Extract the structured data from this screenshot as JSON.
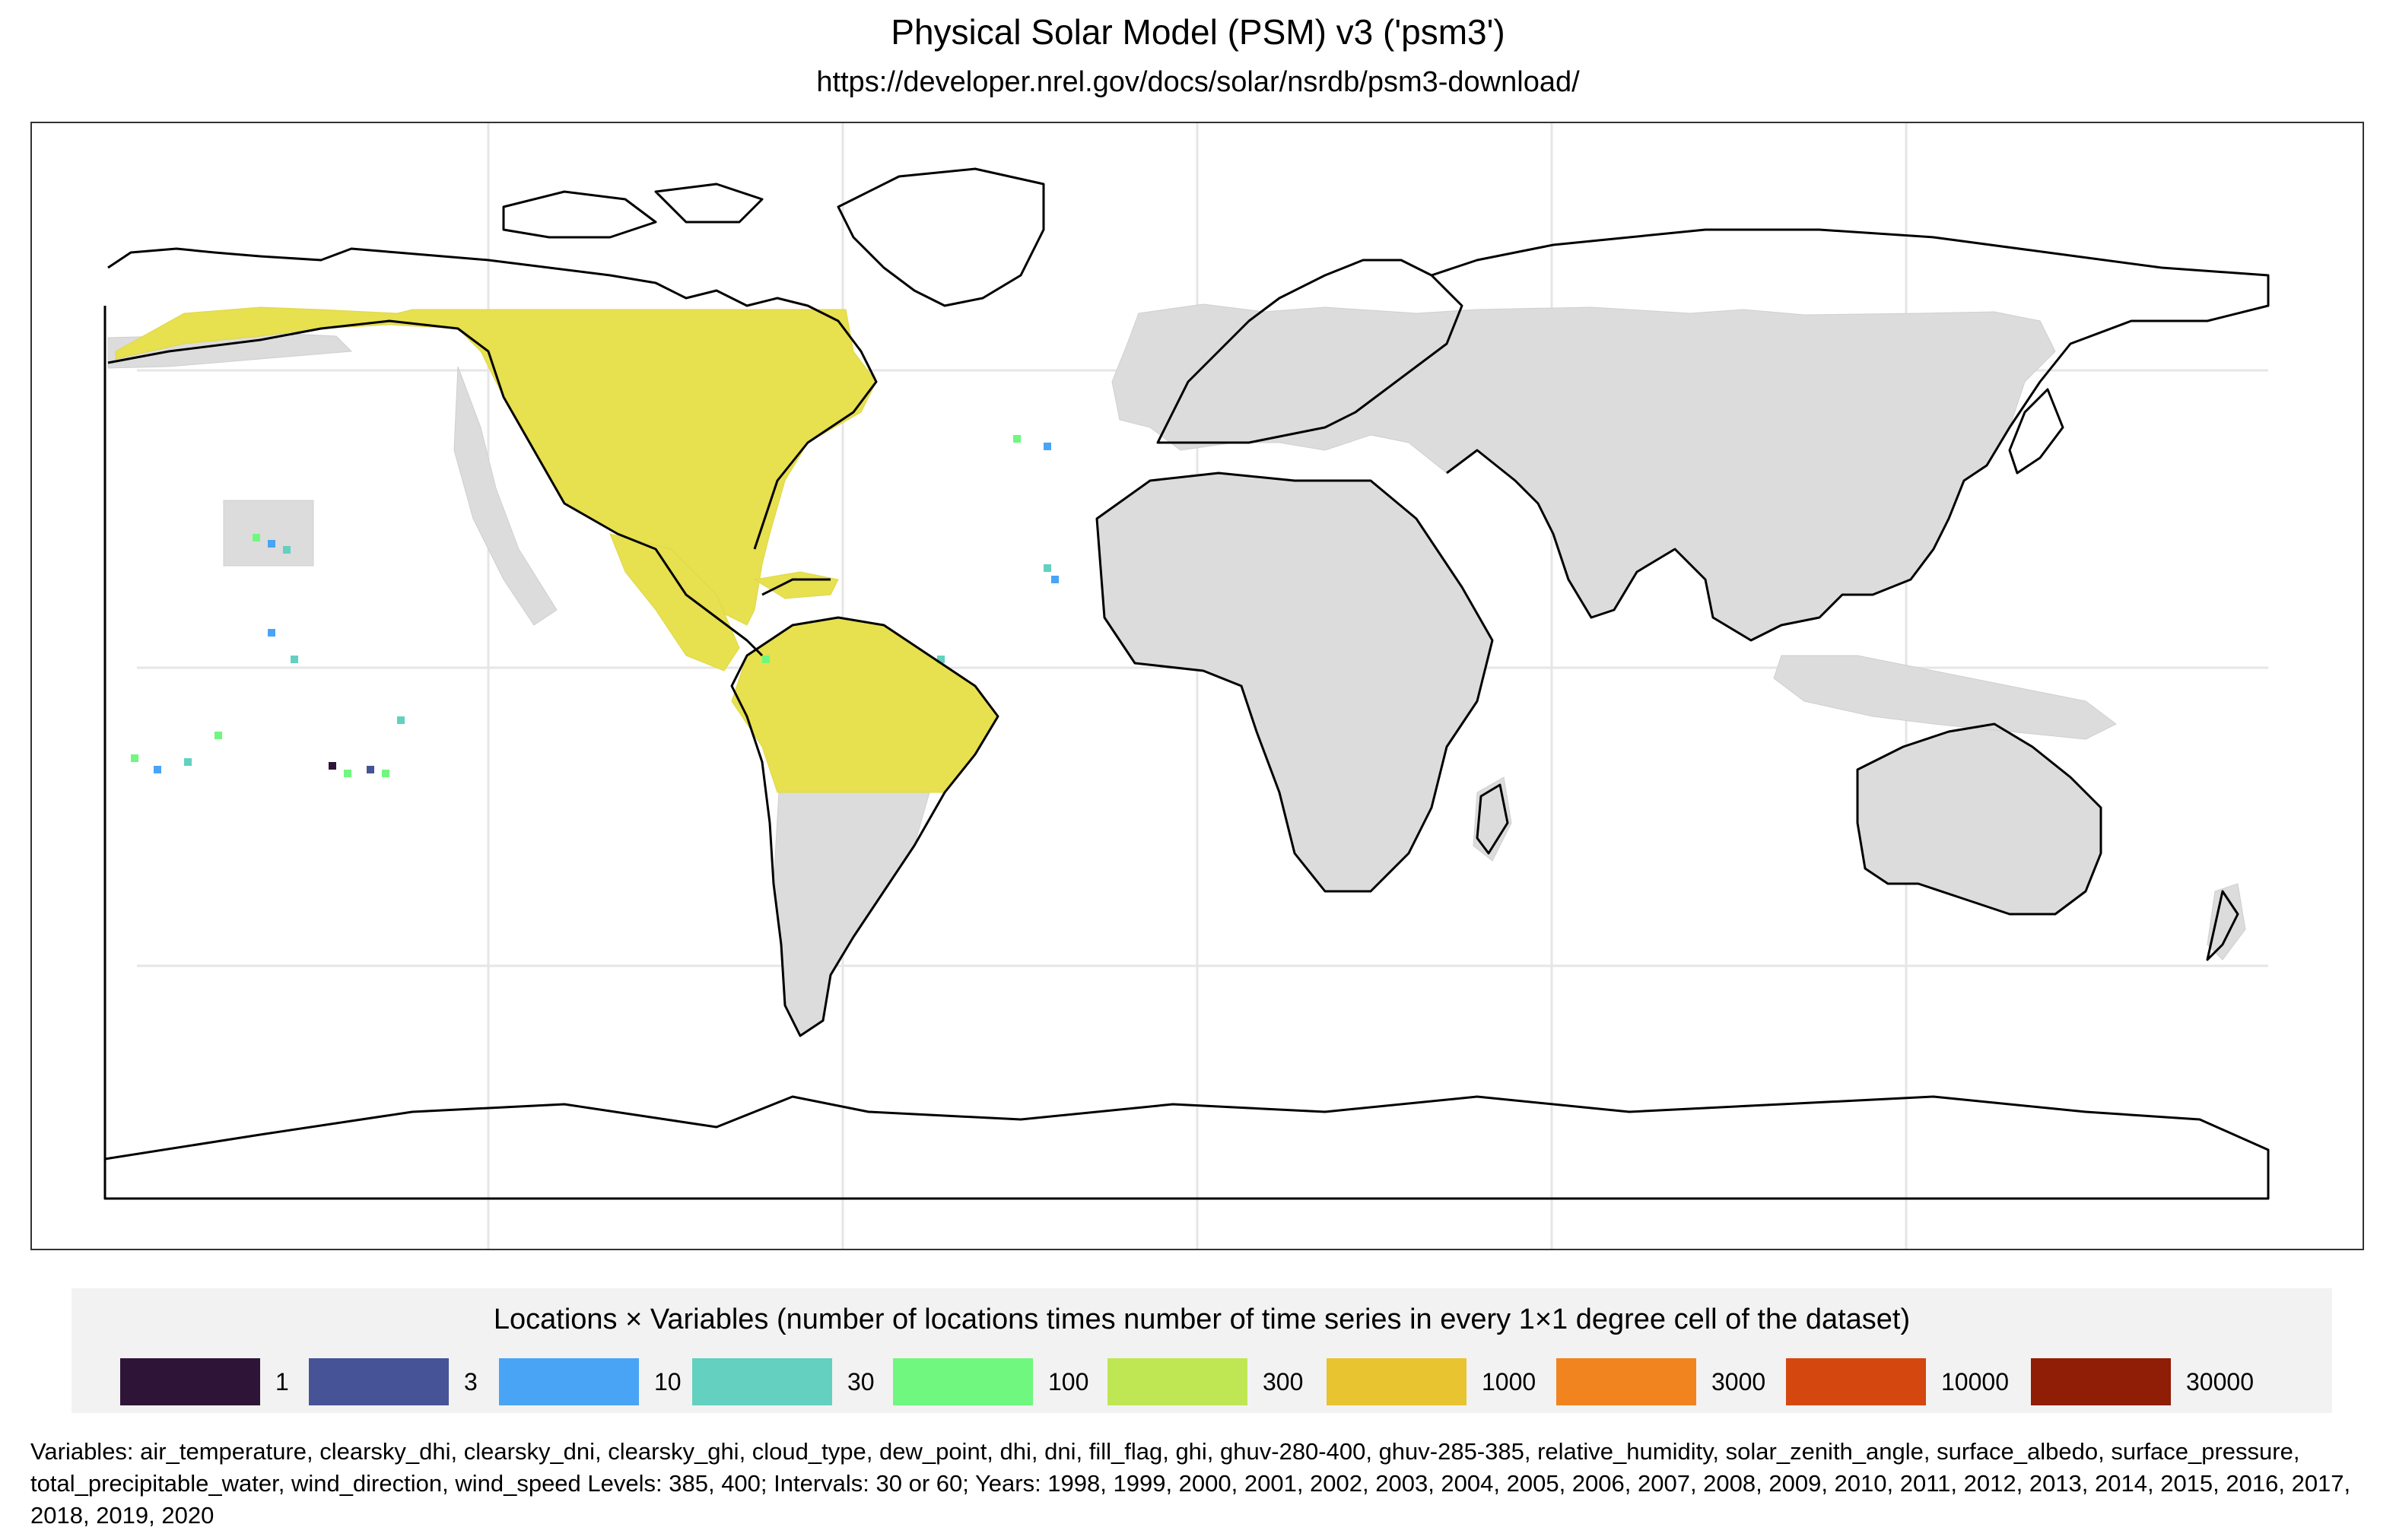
{
  "title": "Physical Solar Model (PSM) v3 ('psm3')",
  "subtitle": "https://developer.nrel.gov/docs/solar/nsrdb/psm3-download/",
  "legend": {
    "title": "Locations × Variables (number of locations times number of time series in every 1×1 degree cell of the dataset)",
    "items": [
      {
        "label": "1",
        "color": "#2e1538"
      },
      {
        "label": "3",
        "color": "#465497"
      },
      {
        "label": "10",
        "color": "#49a4f5"
      },
      {
        "label": "30",
        "color": "#63d0c0"
      },
      {
        "label": "100",
        "color": "#70f77f"
      },
      {
        "label": "300",
        "color": "#bfe753"
      },
      {
        "label": "1000",
        "color": "#e7c430"
      },
      {
        "label": "3000",
        "color": "#f1841f"
      },
      {
        "label": "10000",
        "color": "#d4470f"
      },
      {
        "label": "30000",
        "color": "#901d05"
      }
    ]
  },
  "footnote": "Variables: air_temperature, clearsky_dhi, clearsky_dni, clearsky_ghi, cloud_type, dew_point, dhi, dni, fill_flag, ghi, ghuv-280-400, ghuv-285-385, relative_humidity, solar_zenith_angle, surface_albedo, surface_pressure, total_precipitable_water, wind_direction, wind_speed Levels: 385, 400; Intervals: 30 or 60; Years: 1998, 1999, 2000, 2001, 2002, 2003, 2004, 2005, 2006, 2007, 2008, 2009, 2010, 2011, 2012, 2013, 2014, 2015, 2016, 2017, 2018, 2019, 2020",
  "map": {
    "coverage_color": "#e7e04f",
    "nodata_color": "#dcdcdc",
    "grid_color": "#e6e6e6",
    "coast_color": "#000000"
  }
}
